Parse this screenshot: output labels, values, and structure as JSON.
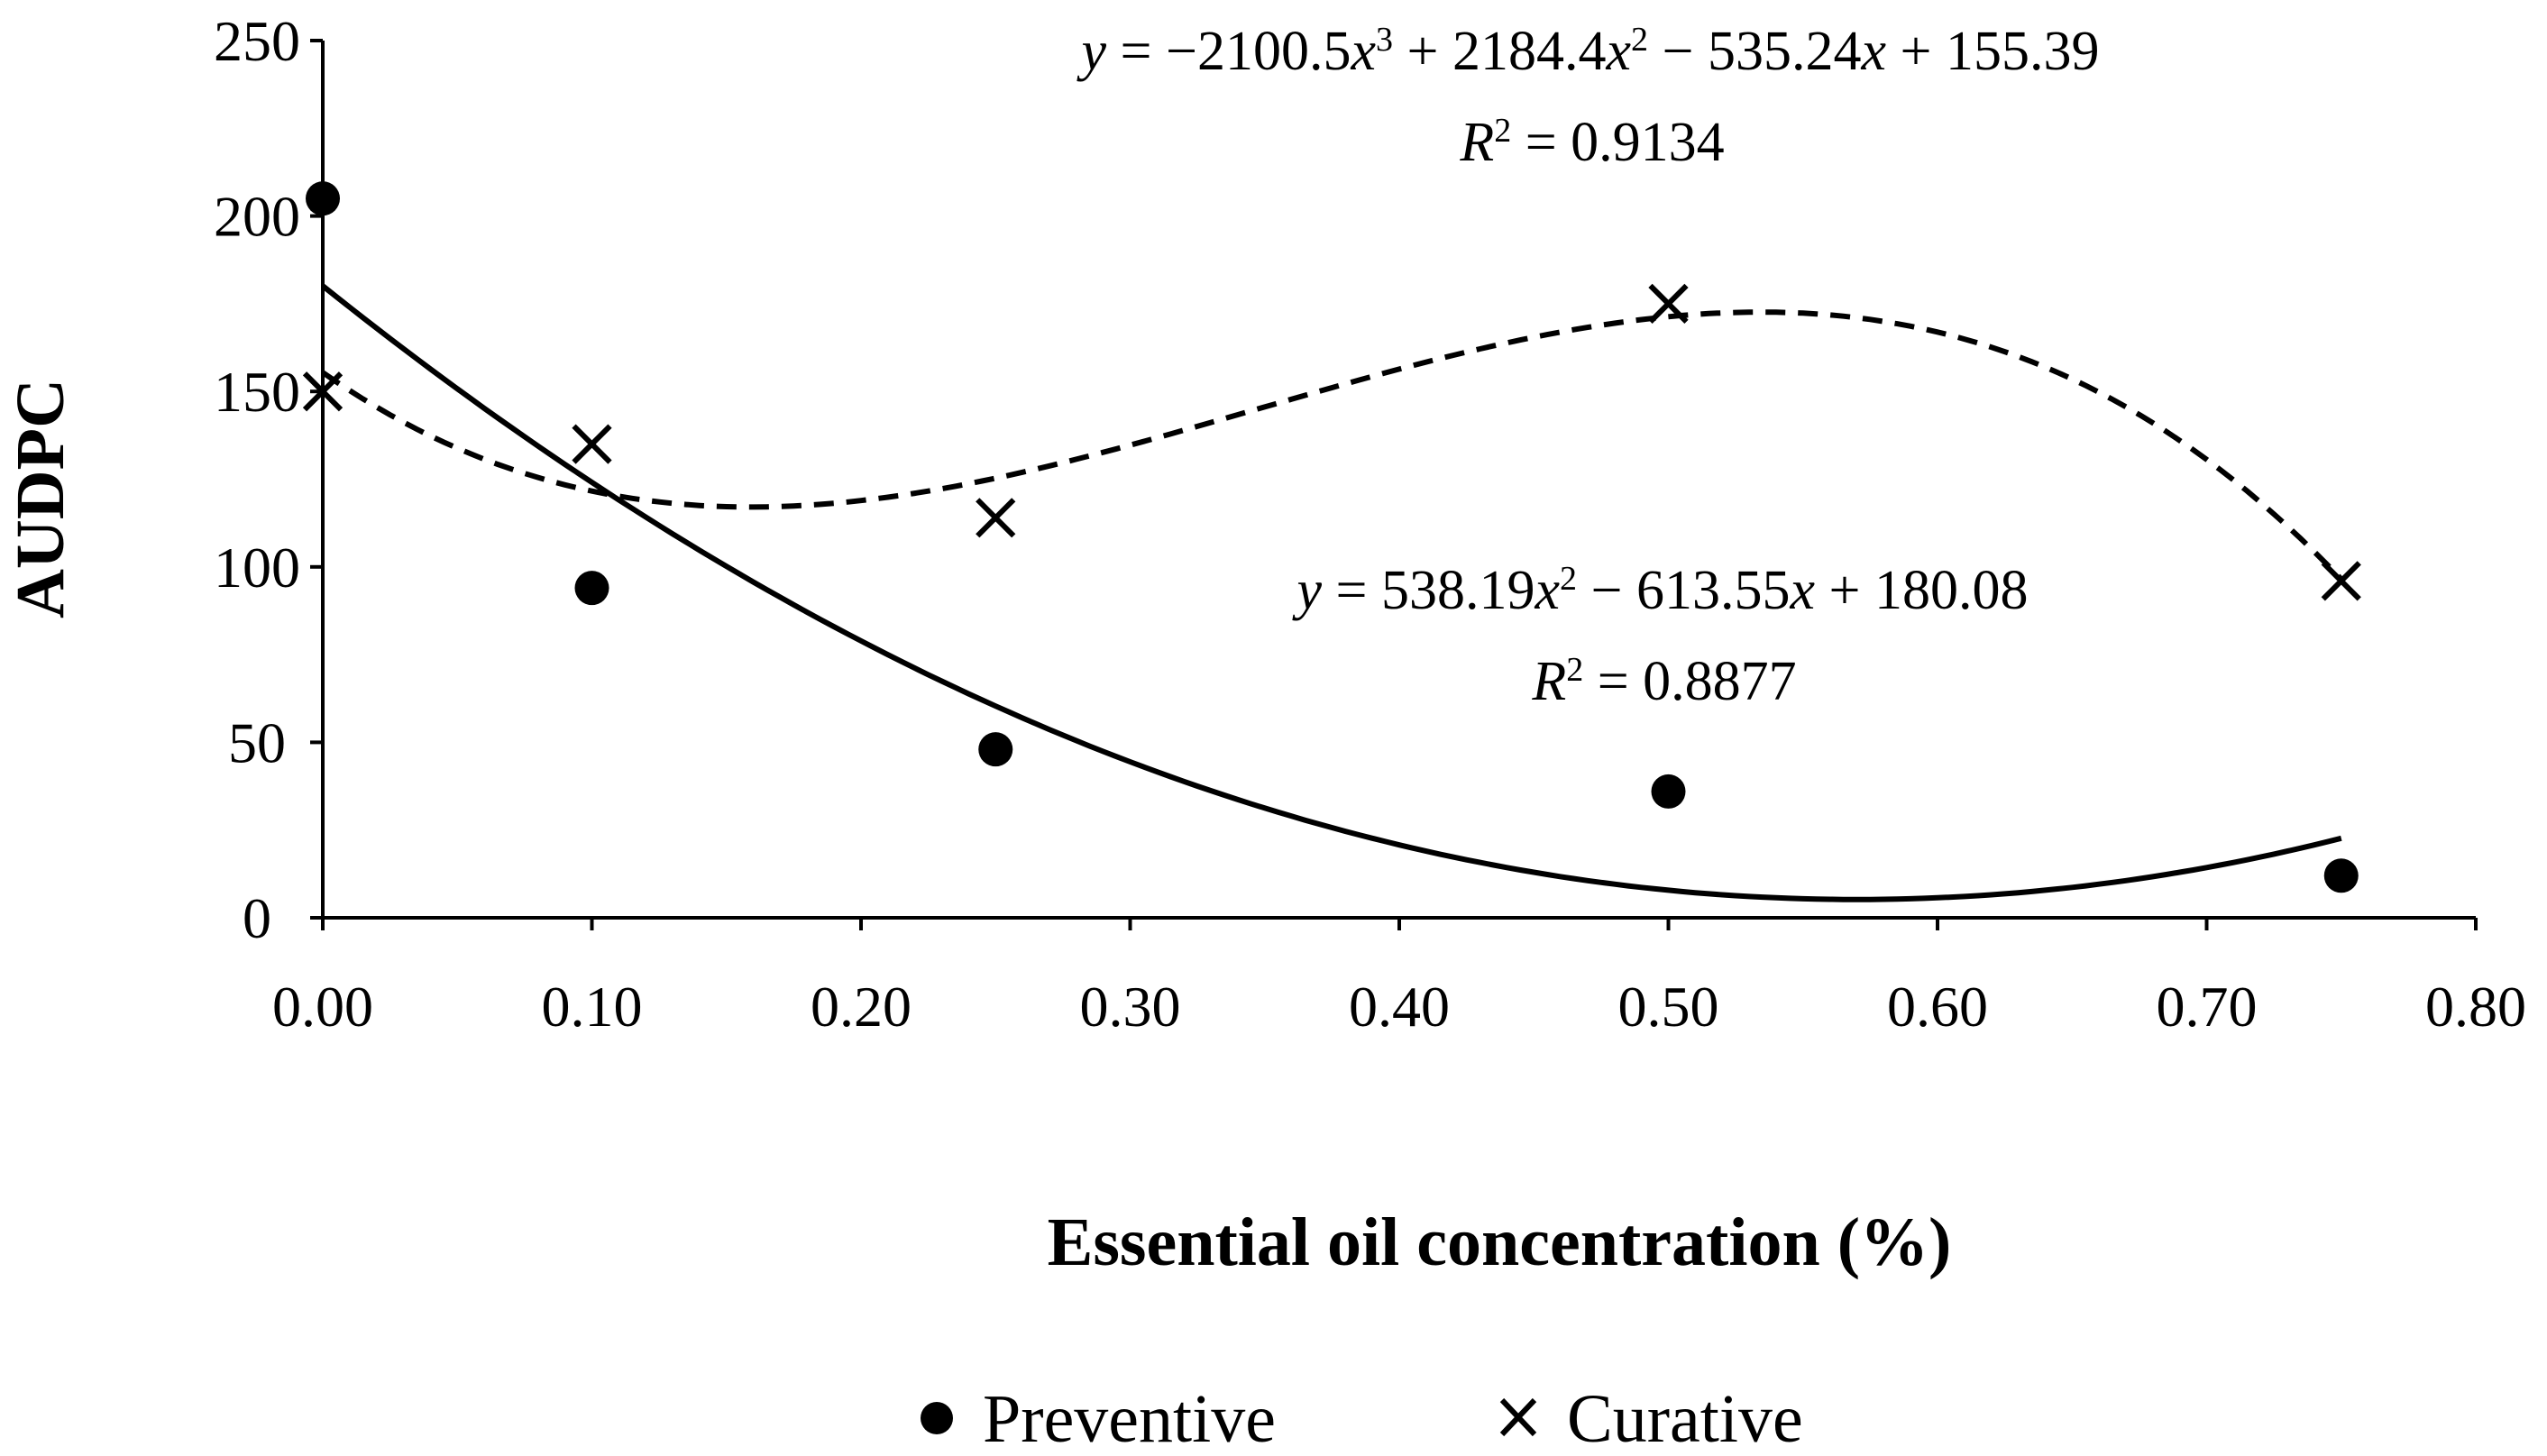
{
  "chart_data": {
    "type": "scatter",
    "title": "",
    "xlabel": "Essential oil concentration (%)",
    "ylabel": "AUDPC",
    "xlim": [
      0,
      0.8
    ],
    "ylim": [
      0,
      250
    ],
    "xticks": [
      0,
      0.1,
      0.2,
      0.3,
      0.4,
      0.5,
      0.6,
      0.7,
      0.8
    ],
    "xtick_labels": [
      "0.00",
      "0.10",
      "0.20",
      "0.30",
      "0.40",
      "0.50",
      "0.60",
      "0.70",
      "0.80"
    ],
    "yticks": [
      0,
      50,
      100,
      150,
      200,
      250
    ],
    "ytick_labels": [
      "0",
      "50",
      "100",
      "150",
      "200",
      "250"
    ],
    "grid": false,
    "legend_position": "bottom",
    "series": [
      {
        "name": "Preventive",
        "marker": "circle",
        "x": [
          0,
          0.1,
          0.25,
          0.5,
          0.75
        ],
        "y": [
          205,
          94,
          48,
          36,
          12
        ],
        "trendline": {
          "style": "solid",
          "coefficients": [
            180.08,
            -613.55,
            538.19
          ],
          "x_range": [
            0,
            0.75
          ],
          "equation_parts": [
            "y",
            " = 538.19",
            "x",
            "2",
            " − 613.55",
            "x",
            " + 180.08"
          ],
          "r2_parts": [
            "R",
            "2",
            " = 0.8877"
          ]
        }
      },
      {
        "name": "Curative",
        "marker": "cross",
        "x": [
          0,
          0.1,
          0.25,
          0.5,
          0.75
        ],
        "y": [
          150,
          135,
          114,
          175,
          96
        ],
        "trendline": {
          "style": "dashed",
          "coefficients": [
            155.39,
            -535.24,
            2184.4,
            -2100.5
          ],
          "x_range": [
            0,
            0.75
          ],
          "equation_parts": [
            "y",
            " = −2100.5",
            "x",
            "3",
            " + 2184.4",
            "x",
            "2",
            " − 535.24",
            "x",
            " + 155.39"
          ],
          "r2_parts": [
            "R",
            "2",
            " = 0.9134"
          ]
        }
      }
    ]
  },
  "colors": {
    "ink": "#000000",
    "background": "#ffffff"
  }
}
